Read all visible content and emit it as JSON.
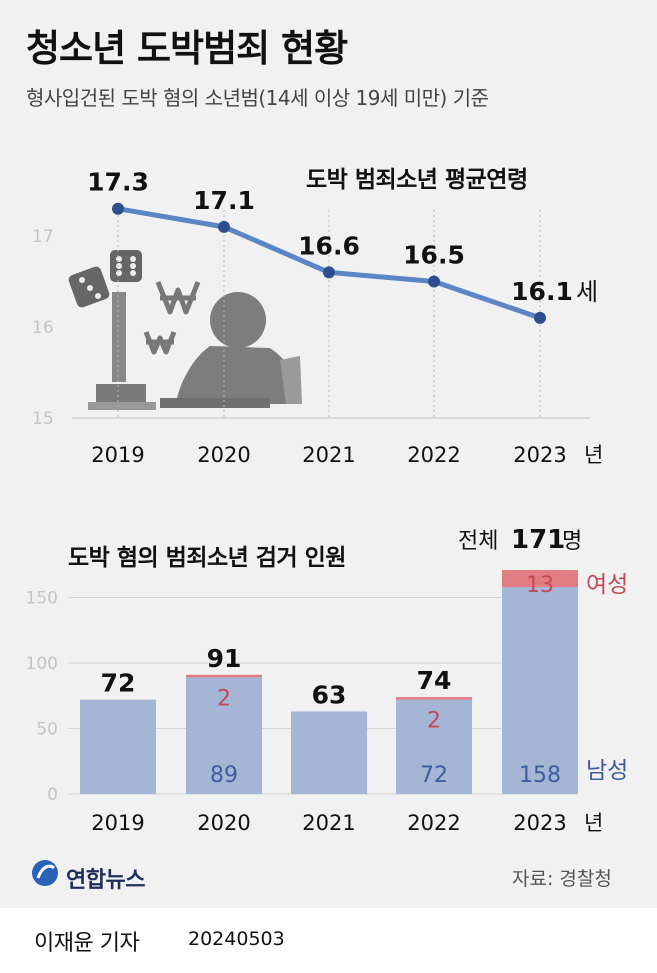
{
  "title": "청소년 도박범죄 현황",
  "subtitle": "형사입건된 도박 혐의 소년범(14세 이상 19세 미만) 기준",
  "line_chart": {
    "title": "도박 범죄소년 평균연령",
    "unit_suffix": "세",
    "year_suffix": "년",
    "line_color": "#5b86c5",
    "dot_color": "#2e4f8f"
  },
  "bar_chart": {
    "title": "도박 혐의 범죄소년 검거 인원",
    "total_prefix": "전체",
    "total_value": "171",
    "total_suffix": "명",
    "legend_female": "여성",
    "legend_male": "남성",
    "year_suffix": "년",
    "male_color": "#a5b5d6",
    "female_color": "#e07c82"
  },
  "chart_data": [
    {
      "type": "line",
      "title": "도박 범죄소년 평균연령",
      "x": [
        "2019",
        "2020",
        "2021",
        "2022",
        "2023"
      ],
      "values": [
        17.3,
        17.1,
        16.6,
        16.5,
        16.1
      ],
      "labels": [
        "17.3",
        "17.1",
        "16.6",
        "16.5",
        "16.1"
      ],
      "yticks": [
        "15",
        "16",
        "17"
      ],
      "ylim": [
        15,
        17.5
      ],
      "grid": false
    },
    {
      "type": "bar",
      "stacked": true,
      "title": "도박 혐의 범죄소년 검거 인원",
      "categories": [
        "2019",
        "2020",
        "2021",
        "2022",
        "2023"
      ],
      "totals": [
        72,
        91,
        63,
        74,
        171
      ],
      "total_labels": [
        "72",
        "91",
        "63",
        "74",
        ""
      ],
      "series": [
        {
          "name": "남성",
          "values": [
            72,
            89,
            63,
            72,
            158
          ],
          "labels": [
            "",
            "89",
            "",
            "72",
            "158"
          ]
        },
        {
          "name": "여성",
          "values": [
            0,
            2,
            0,
            2,
            13
          ],
          "labels": [
            "",
            "2",
            "",
            "2",
            "13"
          ]
        }
      ],
      "yticks": [
        "0",
        "50",
        "100",
        "150"
      ],
      "ylim": [
        0,
        170
      ],
      "grid": true
    }
  ],
  "footer": {
    "source": "자료: 경찰청",
    "logo": "연합뉴스",
    "reporter": "이재윤 기자",
    "date": "20240503"
  }
}
